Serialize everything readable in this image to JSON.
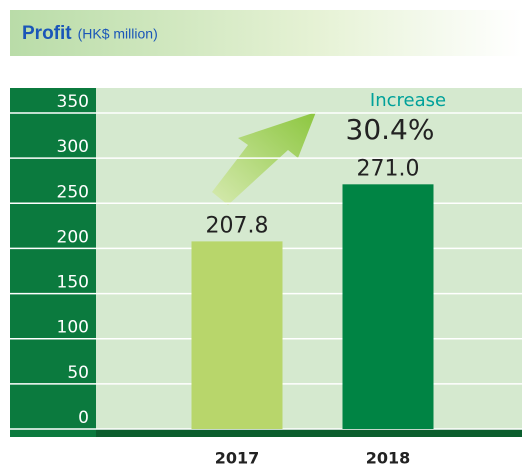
{
  "chart_data": {
    "type": "bar",
    "title": "Profit",
    "subtitle": "(HK$ million)",
    "categories": [
      "2017",
      "2018"
    ],
    "values": [
      207.8,
      271.0
    ],
    "value_labels": [
      "207.8",
      "271.0"
    ],
    "colors": [
      "#b8d66b",
      "#008444"
    ],
    "ylim": [
      0,
      350
    ],
    "yticks": [
      0,
      50,
      100,
      150,
      200,
      250,
      300,
      350
    ],
    "grid": true,
    "annotation": {
      "label": "Increase",
      "value": "30.4%"
    }
  }
}
